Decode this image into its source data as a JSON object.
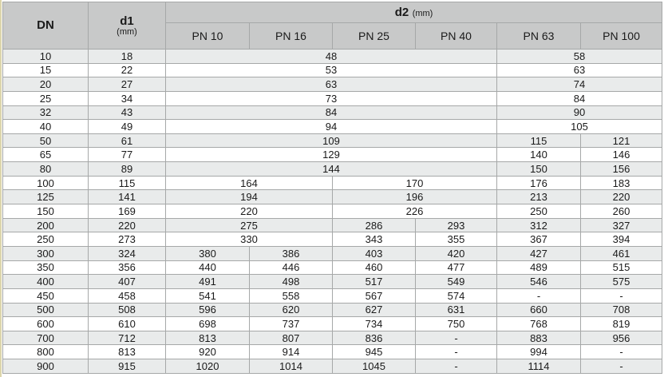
{
  "table": {
    "header": {
      "dn": "DN",
      "d1_label": "d1",
      "d1_unit": "(mm)",
      "d2_label": "d2",
      "d2_unit": "(mm)",
      "pn_columns": [
        "PN 10",
        "PN 16",
        "PN 25",
        "PN 40",
        "PN 63",
        "PN 100"
      ]
    },
    "rows": [
      {
        "dn": "10",
        "d1": "18",
        "cells": [
          {
            "v": "48",
            "span": 4
          },
          {
            "v": "58",
            "span": 2
          }
        ]
      },
      {
        "dn": "15",
        "d1": "22",
        "cells": [
          {
            "v": "53",
            "span": 4
          },
          {
            "v": "63",
            "span": 2
          }
        ]
      },
      {
        "dn": "20",
        "d1": "27",
        "cells": [
          {
            "v": "63",
            "span": 4
          },
          {
            "v": "74",
            "span": 2
          }
        ]
      },
      {
        "dn": "25",
        "d1": "34",
        "cells": [
          {
            "v": "73",
            "span": 4
          },
          {
            "v": "84",
            "span": 2
          }
        ]
      },
      {
        "dn": "32",
        "d1": "43",
        "cells": [
          {
            "v": "84",
            "span": 4
          },
          {
            "v": "90",
            "span": 2
          }
        ]
      },
      {
        "dn": "40",
        "d1": "49",
        "cells": [
          {
            "v": "94",
            "span": 4
          },
          {
            "v": "105",
            "span": 2
          }
        ]
      },
      {
        "dn": "50",
        "d1": "61",
        "cells": [
          {
            "v": "109",
            "span": 4
          },
          {
            "v": "115",
            "span": 1
          },
          {
            "v": "121",
            "span": 1
          }
        ]
      },
      {
        "dn": "65",
        "d1": "77",
        "cells": [
          {
            "v": "129",
            "span": 4
          },
          {
            "v": "140",
            "span": 1
          },
          {
            "v": "146",
            "span": 1
          }
        ]
      },
      {
        "dn": "80",
        "d1": "89",
        "cells": [
          {
            "v": "144",
            "span": 4
          },
          {
            "v": "150",
            "span": 1
          },
          {
            "v": "156",
            "span": 1
          }
        ]
      },
      {
        "dn": "100",
        "d1": "115",
        "cells": [
          {
            "v": "164",
            "span": 2
          },
          {
            "v": "170",
            "span": 2
          },
          {
            "v": "176",
            "span": 1
          },
          {
            "v": "183",
            "span": 1
          }
        ]
      },
      {
        "dn": "125",
        "d1": "141",
        "cells": [
          {
            "v": "194",
            "span": 2
          },
          {
            "v": "196",
            "span": 2
          },
          {
            "v": "213",
            "span": 1
          },
          {
            "v": "220",
            "span": 1
          }
        ]
      },
      {
        "dn": "150",
        "d1": "169",
        "cells": [
          {
            "v": "220",
            "span": 2
          },
          {
            "v": "226",
            "span": 2
          },
          {
            "v": "250",
            "span": 1
          },
          {
            "v": "260",
            "span": 1
          }
        ]
      },
      {
        "dn": "200",
        "d1": "220",
        "cells": [
          {
            "v": "275",
            "span": 2
          },
          {
            "v": "286",
            "span": 1
          },
          {
            "v": "293",
            "span": 1
          },
          {
            "v": "312",
            "span": 1
          },
          {
            "v": "327",
            "span": 1
          }
        ]
      },
      {
        "dn": "250",
        "d1": "273",
        "cells": [
          {
            "v": "330",
            "span": 2
          },
          {
            "v": "343",
            "span": 1
          },
          {
            "v": "355",
            "span": 1
          },
          {
            "v": "367",
            "span": 1
          },
          {
            "v": "394",
            "span": 1
          }
        ]
      },
      {
        "dn": "300",
        "d1": "324",
        "cells": [
          {
            "v": "380",
            "span": 1
          },
          {
            "v": "386",
            "span": 1
          },
          {
            "v": "403",
            "span": 1
          },
          {
            "v": "420",
            "span": 1
          },
          {
            "v": "427",
            "span": 1
          },
          {
            "v": "461",
            "span": 1
          }
        ]
      },
      {
        "dn": "350",
        "d1": "356",
        "cells": [
          {
            "v": "440",
            "span": 1
          },
          {
            "v": "446",
            "span": 1
          },
          {
            "v": "460",
            "span": 1
          },
          {
            "v": "477",
            "span": 1
          },
          {
            "v": "489",
            "span": 1
          },
          {
            "v": "515",
            "span": 1
          }
        ]
      },
      {
        "dn": "400",
        "d1": "407",
        "cells": [
          {
            "v": "491",
            "span": 1
          },
          {
            "v": "498",
            "span": 1
          },
          {
            "v": "517",
            "span": 1
          },
          {
            "v": "549",
            "span": 1
          },
          {
            "v": "546",
            "span": 1
          },
          {
            "v": "575",
            "span": 1
          }
        ]
      },
      {
        "dn": "450",
        "d1": "458",
        "cells": [
          {
            "v": "541",
            "span": 1
          },
          {
            "v": "558",
            "span": 1
          },
          {
            "v": "567",
            "span": 1
          },
          {
            "v": "574",
            "span": 1
          },
          {
            "v": "-",
            "span": 1
          },
          {
            "v": "-",
            "span": 1
          }
        ]
      },
      {
        "dn": "500",
        "d1": "508",
        "cells": [
          {
            "v": "596",
            "span": 1
          },
          {
            "v": "620",
            "span": 1
          },
          {
            "v": "627",
            "span": 1
          },
          {
            "v": "631",
            "span": 1
          },
          {
            "v": "660",
            "span": 1
          },
          {
            "v": "708",
            "span": 1
          }
        ]
      },
      {
        "dn": "600",
        "d1": "610",
        "cells": [
          {
            "v": "698",
            "span": 1
          },
          {
            "v": "737",
            "span": 1
          },
          {
            "v": "734",
            "span": 1
          },
          {
            "v": "750",
            "span": 1
          },
          {
            "v": "768",
            "span": 1
          },
          {
            "v": "819",
            "span": 1
          }
        ]
      },
      {
        "dn": "700",
        "d1": "712",
        "cells": [
          {
            "v": "813",
            "span": 1
          },
          {
            "v": "807",
            "span": 1
          },
          {
            "v": "836",
            "span": 1
          },
          {
            "v": "-",
            "span": 1
          },
          {
            "v": "883",
            "span": 1
          },
          {
            "v": "956",
            "span": 1
          }
        ]
      },
      {
        "dn": "800",
        "d1": "813",
        "cells": [
          {
            "v": "920",
            "span": 1
          },
          {
            "v": "914",
            "span": 1
          },
          {
            "v": "945",
            "span": 1
          },
          {
            "v": "-",
            "span": 1
          },
          {
            "v": "994",
            "span": 1
          },
          {
            "v": "-",
            "span": 1
          }
        ]
      },
      {
        "dn": "900",
        "d1": "915",
        "cells": [
          {
            "v": "1020",
            "span": 1
          },
          {
            "v": "1014",
            "span": 1
          },
          {
            "v": "1045",
            "span": 1
          },
          {
            "v": "-",
            "span": 1
          },
          {
            "v": "1114",
            "span": 1
          },
          {
            "v": "-",
            "span": 1
          }
        ]
      }
    ]
  },
  "colors": {
    "header_bg": "#c8c9c9",
    "row_alt_bg": "#e9ebeb",
    "border_inner": "#a6a8a8",
    "border_outer": "#8f9191",
    "left_strip": "#dcd5ab",
    "text": "#1a1a1a"
  }
}
